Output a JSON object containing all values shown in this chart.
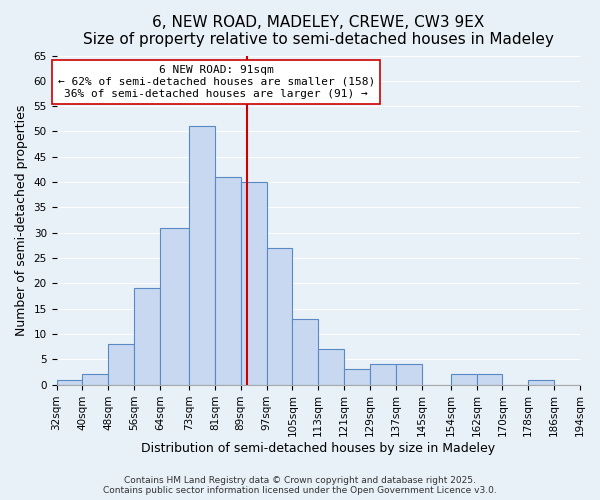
{
  "title": "6, NEW ROAD, MADELEY, CREWE, CW3 9EX",
  "subtitle": "Size of property relative to semi-detached houses in Madeley",
  "xlabel": "Distribution of semi-detached houses by size in Madeley",
  "ylabel": "Number of semi-detached properties",
  "bar_edges": [
    32,
    40,
    48,
    56,
    64,
    73,
    81,
    89,
    97,
    105,
    113,
    121,
    129,
    137,
    145,
    154,
    162,
    170,
    178,
    186,
    194
  ],
  "bar_heights": [
    1,
    2,
    8,
    19,
    31,
    51,
    41,
    40,
    27,
    13,
    7,
    3,
    4,
    4,
    0,
    2,
    2,
    0,
    1,
    0
  ],
  "bar_color": "#c8d8f0",
  "bar_edge_color": "#5a8ac6",
  "property_line_x": 91,
  "property_line_color": "#cc0000",
  "annotation_title": "6 NEW ROAD: 91sqm",
  "annotation_line1": "← 62% of semi-detached houses are smaller (158)",
  "annotation_line2": "36% of semi-detached houses are larger (91) →",
  "annotation_box_color": "#ffffff",
  "annotation_box_edge": "#cc0000",
  "ylim": [
    0,
    65
  ],
  "yticks": [
    0,
    5,
    10,
    15,
    20,
    25,
    30,
    35,
    40,
    45,
    50,
    55,
    60,
    65
  ],
  "tick_labels": [
    "32sqm",
    "40sqm",
    "48sqm",
    "56sqm",
    "64sqm",
    "73sqm",
    "81sqm",
    "89sqm",
    "97sqm",
    "105sqm",
    "113sqm",
    "121sqm",
    "129sqm",
    "137sqm",
    "145sqm",
    "154sqm",
    "162sqm",
    "170sqm",
    "178sqm",
    "186sqm",
    "194sqm"
  ],
  "background_color": "#e8f0f8",
  "footer_line1": "Contains HM Land Registry data © Crown copyright and database right 2025.",
  "footer_line2": "Contains public sector information licensed under the Open Government Licence v3.0.",
  "title_fontsize": 11,
  "subtitle_fontsize": 10,
  "axis_label_fontsize": 9,
  "tick_fontsize": 7.5,
  "annotation_fontsize": 8,
  "footer_fontsize": 6.5
}
